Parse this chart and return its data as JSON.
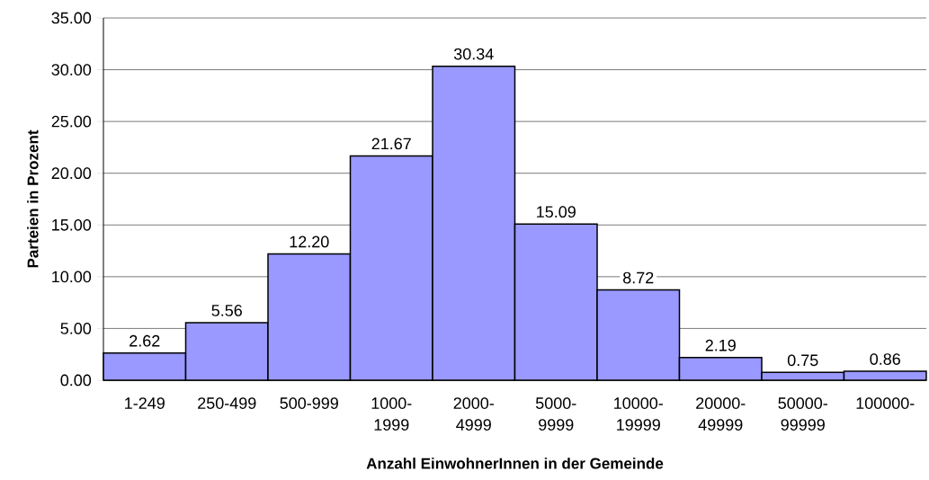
{
  "chart_data": {
    "type": "bar",
    "xlabel": "Anzahl EinwohnerInnen in der Gemeinde",
    "ylabel": "Parteien in Prozent",
    "categories": [
      "1-249",
      "250-499",
      "500-999",
      "1000-1999",
      "2000-4999",
      "5000-9999",
      "10000-19999",
      "20000-49999",
      "50000-99999",
      "100000-"
    ],
    "values": [
      2.62,
      5.56,
      12.2,
      21.67,
      30.34,
      15.09,
      8.72,
      2.19,
      0.75,
      0.86
    ],
    "value_labels": [
      "2.62",
      "5.56",
      "12.20",
      "21.67",
      "30.34",
      "15.09",
      "8.72",
      "2.19",
      "0.75",
      "0.86"
    ],
    "color": "#9999ff",
    "ylim": [
      0,
      35
    ],
    "yticks": [
      {
        "value": 0,
        "label": "0.00"
      },
      {
        "value": 5,
        "label": "5.00"
      },
      {
        "value": 10,
        "label": "10.00"
      },
      {
        "value": 15,
        "label": "15.00"
      },
      {
        "value": 20,
        "label": "20.00"
      },
      {
        "value": 25,
        "label": "25.00"
      },
      {
        "value": 30,
        "label": "30.00"
      },
      {
        "value": 35,
        "label": "35.00"
      }
    ],
    "grid": "y"
  }
}
